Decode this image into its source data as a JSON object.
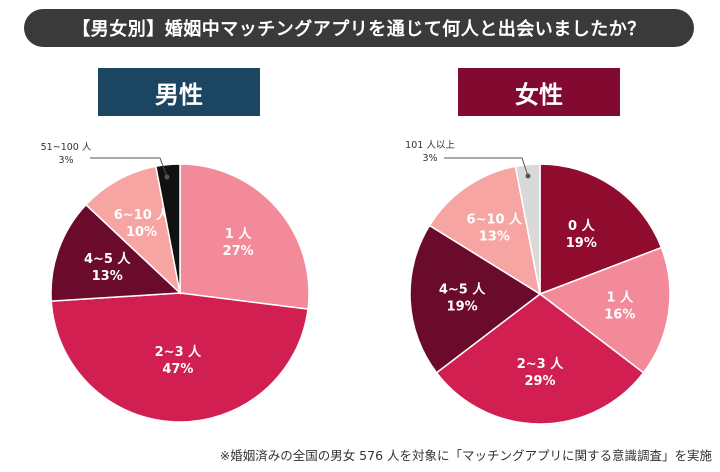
{
  "title": "【男女別】婚姻中マッチングアプリを通じて何人と出会いましたか？",
  "footnote": "※婚姻済みの全国の男女 576 人を対象に「マッチングアプリに関する意識調査」を実施",
  "chart_data": [
    {
      "type": "pie",
      "title": "男性",
      "header_color": "#1b4560",
      "slices": [
        {
          "label": "1 人",
          "value": 27,
          "display": "27%",
          "color": "#f28a9a",
          "text_color": "#ffffff"
        },
        {
          "label": "2~3 人",
          "value": 47,
          "display": "47%",
          "color": "#d01f50",
          "text_color": "#ffffff"
        },
        {
          "label": "4~5 人",
          "value": 13,
          "display": "13%",
          "color": "#6b0b2c",
          "text_color": "#ffffff"
        },
        {
          "label": "6~10 人",
          "value": 10,
          "display": "10%",
          "color": "#f6a5a2",
          "text_color": "#ffffff"
        },
        {
          "label": "51~100 人",
          "value": 3,
          "display": "3%",
          "color": "#111111",
          "text_color": "#333333",
          "external": true
        }
      ]
    },
    {
      "type": "pie",
      "title": "女性",
      "header_color": "#820a30",
      "slices": [
        {
          "label": "0 人",
          "value": 19,
          "display": "19%",
          "color": "#8f0c2e",
          "text_color": "#ffffff"
        },
        {
          "label": "1 人",
          "value": 16,
          "display": "16%",
          "color": "#f28a9a",
          "text_color": "#ffffff"
        },
        {
          "label": "2~3 人",
          "value": 29,
          "display": "29%",
          "color": "#d01f50",
          "text_color": "#ffffff"
        },
        {
          "label": "4~5 人",
          "value": 19,
          "display": "19%",
          "color": "#6b0b2c",
          "text_color": "#ffffff"
        },
        {
          "label": "6~10 人",
          "value": 13,
          "display": "13%",
          "color": "#f6a5a2",
          "text_color": "#ffffff"
        },
        {
          "label": "101 人以上",
          "value": 3,
          "display": "3%",
          "color": "#d9d9d9",
          "text_color": "#333333",
          "external": true
        }
      ]
    }
  ]
}
